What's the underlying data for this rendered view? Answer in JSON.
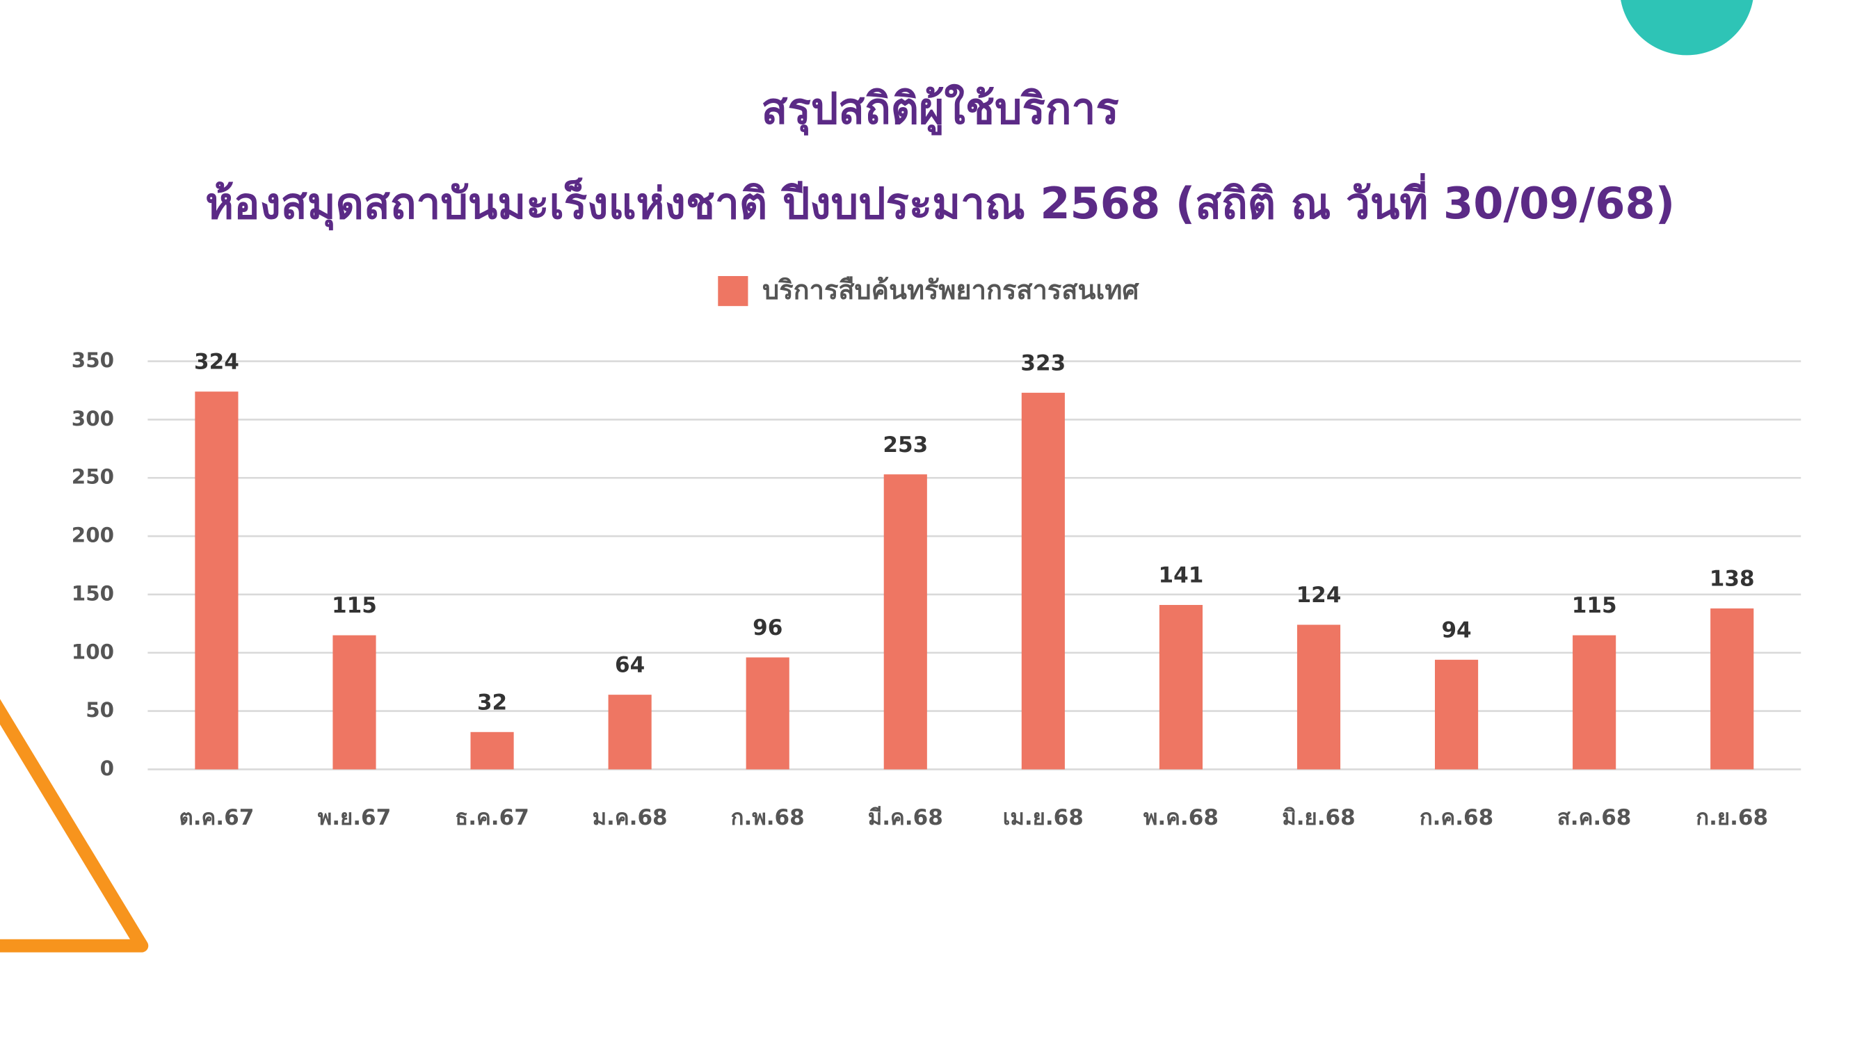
{
  "chart_data": {
    "type": "bar",
    "title": "สรุปสถิติผู้ใช้บริการ",
    "subtitle": "ห้องสมุดสถาบันมะเร็งแห่งชาติ ปีงบประมาณ 2568 (สถิติ ณ วันที่ 30/09/68)",
    "categories": [
      "ต.ค.67",
      "พ.ย.67",
      "ธ.ค.67",
      "ม.ค.68",
      "ก.พ.68",
      "มี.ค.68",
      "เม.ย.68",
      "พ.ค.68",
      "มิ.ย.68",
      "ก.ค.68",
      "ส.ค.68",
      "ก.ย.68"
    ],
    "series": [
      {
        "name": "บริการสืบค้นทรัพยากรสารสนเทศ",
        "color": "#ee7663",
        "values": [
          324,
          115,
          32,
          64,
          96,
          253,
          323,
          141,
          124,
          94,
          115,
          138
        ]
      }
    ],
    "ylim": [
      0,
      350
    ],
    "yticks": [
      0,
      50,
      100,
      150,
      200,
      250,
      300,
      350
    ],
    "grid": true,
    "legend": "top"
  }
}
